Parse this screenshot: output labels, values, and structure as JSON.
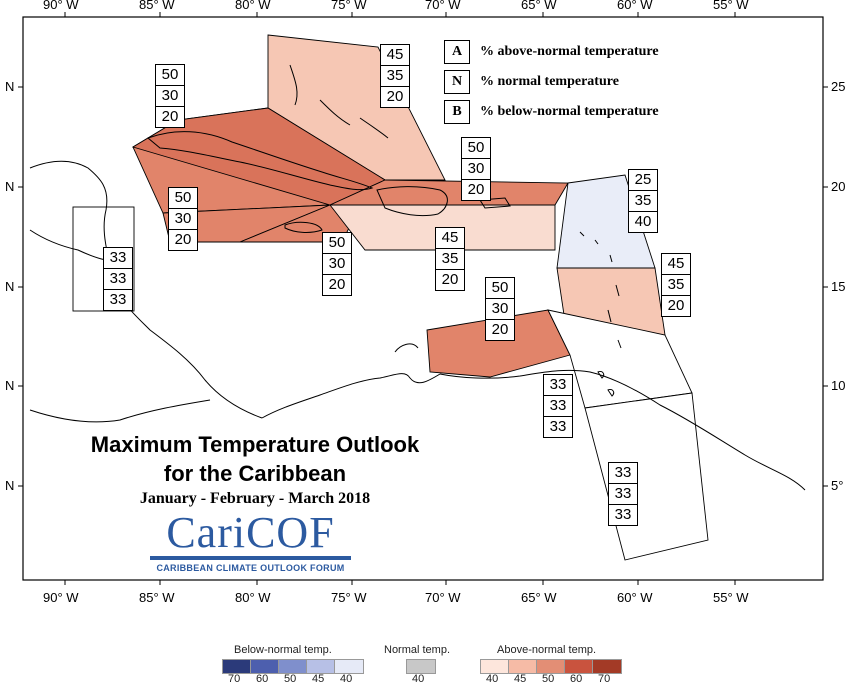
{
  "map": {
    "lon_ticks": [
      "90° W",
      "85° W",
      "80° W",
      "75° W",
      "70° W",
      "65° W",
      "60° W",
      "55° W"
    ],
    "lat_ticks_left": [
      "N",
      "N",
      "N",
      "N",
      "N"
    ],
    "lat_ticks_right": [
      "25",
      "20",
      "15",
      "10",
      "5°"
    ],
    "colors": {
      "above_45": "#f6c7b4",
      "above_50": "#e1846a",
      "below_40": "#e9edf8",
      "above_light": "#f9dcd0",
      "land_line": "#000000",
      "zone_line": "#000000"
    },
    "region_values": [
      {
        "region": "bahamas",
        "A": "45",
        "N": "35",
        "B": "20"
      },
      {
        "region": "cuba",
        "A": "50",
        "N": "30",
        "B": "20"
      },
      {
        "region": "hispaniola-north",
        "A": "50",
        "N": "30",
        "B": "20"
      },
      {
        "region": "cayman",
        "A": "50",
        "N": "30",
        "B": "20"
      },
      {
        "region": "jamaica",
        "A": "50",
        "N": "30",
        "B": "20"
      },
      {
        "region": "hispaniola-pr",
        "A": "45",
        "N": "35",
        "B": "20"
      },
      {
        "region": "leeward",
        "A": "25",
        "N": "35",
        "B": "40"
      },
      {
        "region": "windward",
        "A": "45",
        "N": "35",
        "B": "20"
      },
      {
        "region": "abc-islands",
        "A": "50",
        "N": "30",
        "B": "20"
      },
      {
        "region": "belize",
        "A": "33",
        "N": "33",
        "B": "33"
      },
      {
        "region": "trinidad",
        "A": "33",
        "N": "33",
        "B": "33"
      },
      {
        "region": "guianas",
        "A": "33",
        "N": "33",
        "B": "33"
      }
    ]
  },
  "legend": {
    "rows": [
      {
        "key": "A",
        "text": "% above-normal temperature"
      },
      {
        "key": "N",
        "text": "% normal temperature"
      },
      {
        "key": "B",
        "text": "% below-normal temperature"
      }
    ]
  },
  "title": {
    "line1": "Maximum Temperature Outlook",
    "line2": "for the Caribbean",
    "period": "January - February - March 2018"
  },
  "logo": {
    "word": "CariCOF",
    "subtitle": "CARIBBEAN CLIMATE OUTLOOK FORUM"
  },
  "color_scale": {
    "below_title": "Below-normal temp.",
    "normal_title": "Normal temp.",
    "above_title": "Above-normal temp.",
    "below_colors": [
      "#2b3a7a",
      "#4d5fae",
      "#7f8fcc",
      "#b7c0e6",
      "#e6eaf7"
    ],
    "below_ticks": [
      "70",
      "60",
      "50",
      "45",
      "40"
    ],
    "normal_color": "#c8c8c8",
    "normal_ticks": [
      "40"
    ],
    "above_colors": [
      "#fde6dc",
      "#f6bba6",
      "#e38e75",
      "#c9533e",
      "#a33a26"
    ],
    "above_ticks": [
      "40",
      "45",
      "50",
      "60",
      "70"
    ]
  }
}
